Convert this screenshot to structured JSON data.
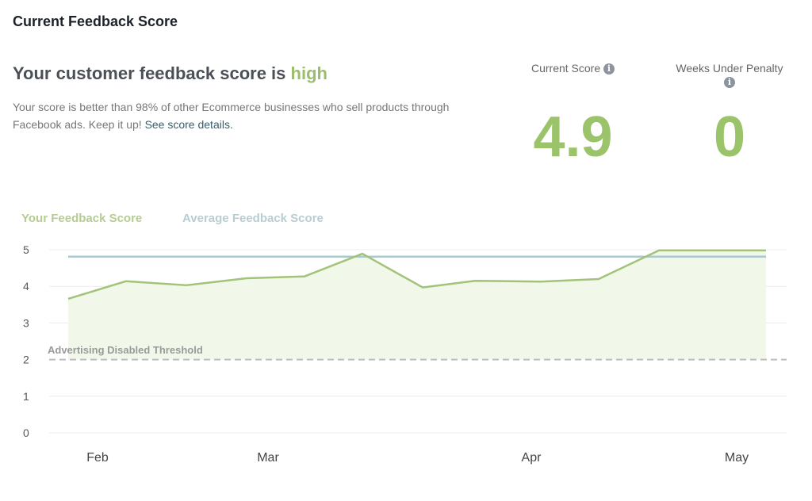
{
  "card_title": "Current Feedback Score",
  "headline": {
    "prefix": "Your customer feedback score is ",
    "level": "high"
  },
  "description": {
    "text": "Your score is better than 98% of other Ecommerce businesses who sell products through Facebook ads. Keep it up! ",
    "link": "See score details."
  },
  "stats": {
    "current_score": {
      "label": "Current Score",
      "value": "4.9"
    },
    "weeks_under_penalty": {
      "label": "Weeks Under Penalty",
      "value": "0"
    },
    "info_icon": "i"
  },
  "colors": {
    "your_score": "#a3c27a",
    "average": "#a9c8cf",
    "threshold": "#bdbdbd",
    "fill": "#f1f8ea",
    "accent": "#9bc46a"
  },
  "chart_data": {
    "type": "line",
    "legend_placement": "top-left",
    "grid": true,
    "ylim": [
      0,
      5
    ],
    "y_ticks": [
      "0",
      "1",
      "2",
      "3",
      "4",
      "5"
    ],
    "x_tick_labels": [
      "Feb",
      "Mar",
      "Apr",
      "May"
    ],
    "series": [
      {
        "name": "Your Feedback Score",
        "values": [
          3.66,
          4.14,
          4.03,
          4.22,
          4.27,
          4.89,
          3.97,
          4.15,
          4.13,
          4.2,
          4.98,
          4.98
        ]
      },
      {
        "name": "Average Feedback Score",
        "values": [
          4.81,
          4.81,
          4.81,
          4.81,
          4.81,
          4.81,
          4.81,
          4.81,
          4.81,
          4.81,
          4.81,
          4.81
        ]
      }
    ],
    "threshold": {
      "label": "Advertising Disabled Threshold",
      "value": 2
    }
  }
}
